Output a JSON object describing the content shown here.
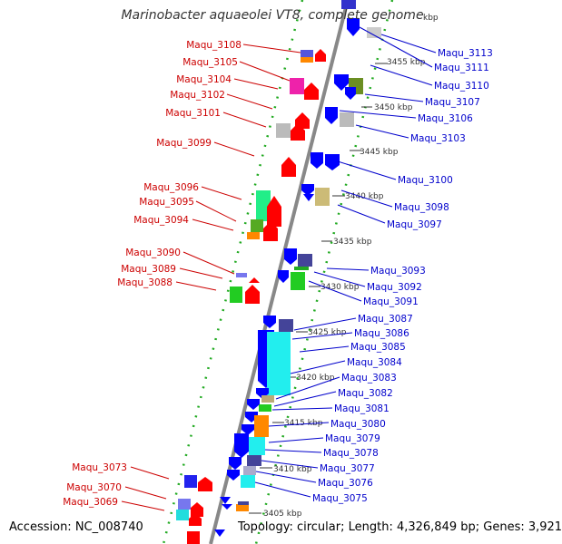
{
  "title": "Marinobacter aquaeolei VT8, complete genome",
  "accession": "Accession: NC_008740",
  "topology": "Topology: circular; Length: 4,326,849 bp; Genes: 3,921",
  "scale_labels": [
    "kbp",
    "3455 kbp",
    "3450 kbp",
    "3445 kbp",
    "3440 kbp",
    "3435 kbp",
    "3430 kbp",
    "3425 kbp",
    "3420 kbp",
    "3415 kbp",
    "3410 kbp",
    "3405 kbp"
  ],
  "left_genes": [
    "Maqu_3108",
    "Maqu_3105",
    "Maqu_3104",
    "Maqu_3102",
    "Maqu_3101",
    "Maqu_3099",
    "Maqu_3096",
    "Maqu_3095",
    "Maqu_3094",
    "Maqu_3090",
    "Maqu_3089",
    "Maqu_3088",
    "Maqu_3073",
    "Maqu_3070",
    "Maqu_3069"
  ],
  "right_genes": [
    "Maqu_3113",
    "Maqu_3111",
    "Maqu_3110",
    "Maqu_3107",
    "Maqu_3106",
    "Maqu_3103",
    "Maqu_3100",
    "Maqu_3098",
    "Maqu_3097",
    "Maqu_3093",
    "Maqu_3092",
    "Maqu_3091",
    "Maqu_3087",
    "Maqu_3086",
    "Maqu_3085",
    "Maqu_3084",
    "Maqu_3083",
    "Maqu_3082",
    "Maqu_3081",
    "Maqu_3080",
    "Maqu_3079",
    "Maqu_3078",
    "Maqu_3077",
    "Maqu_3076",
    "Maqu_3075"
  ],
  "colors": {
    "left_label": "#cc0000",
    "right_label": "#0000cc",
    "forward_gene": "#ff0000",
    "reverse_gene": "#0000ff",
    "backbone": "#888888",
    "dots": "#22aa22"
  }
}
